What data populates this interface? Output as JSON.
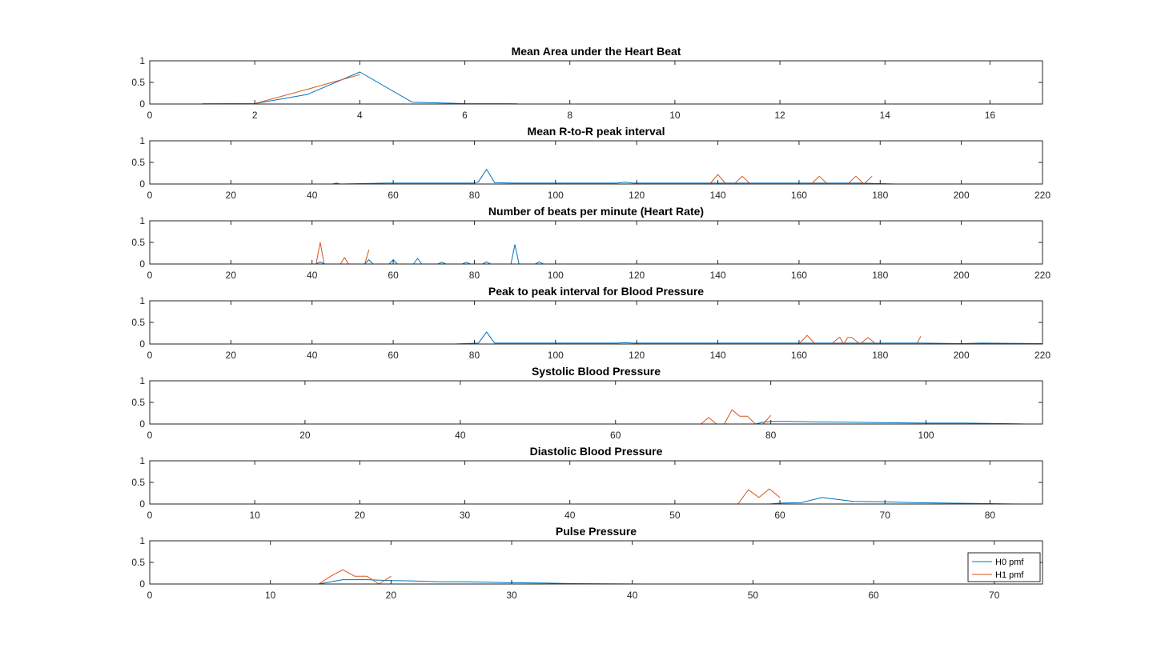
{
  "colors": {
    "h0": "#0072BD",
    "h1": "#D95319",
    "axis": "#262626",
    "background": "#ffffff"
  },
  "legend": {
    "placement": "bottom-right",
    "panel": 6,
    "entries": [
      "H0 pmf",
      "H1 pmf"
    ]
  },
  "chart_data": [
    {
      "type": "line",
      "title": "Mean Area under the Heart Beat",
      "xlim": [
        0,
        17
      ],
      "ylim": [
        0,
        1
      ],
      "xticks": [
        0,
        2,
        4,
        6,
        8,
        10,
        12,
        14,
        16
      ],
      "yticks": [
        0,
        0.5,
        1
      ],
      "grid": false,
      "series": [
        {
          "name": "H0 pmf",
          "x": [
            1,
            2,
            3,
            4,
            5,
            6,
            7
          ],
          "y": [
            0.005,
            0.01,
            0.22,
            0.74,
            0.04,
            0.01,
            0.005
          ]
        },
        {
          "name": "H1 pmf",
          "x": [
            1,
            2,
            3,
            4
          ],
          "y": [
            0.005,
            0.01,
            0.34,
            0.68
          ]
        }
      ]
    },
    {
      "type": "line",
      "title": "Mean R-to-R peak interval",
      "xlim": [
        0,
        220
      ],
      "ylim": [
        0,
        1
      ],
      "xticks": [
        0,
        20,
        40,
        60,
        80,
        100,
        120,
        140,
        160,
        180,
        200,
        220
      ],
      "yticks": [
        0,
        0.5,
        1
      ],
      "grid": false,
      "series": [
        {
          "name": "H0 pmf",
          "x": [
            0,
            45,
            46,
            47,
            58,
            66,
            80,
            81,
            83,
            85,
            90,
            115,
            117,
            119,
            140,
            160,
            175,
            180,
            184
          ],
          "y": [
            0,
            0,
            0.02,
            0,
            0.02,
            0.02,
            0.02,
            0.05,
            0.34,
            0.03,
            0.02,
            0.02,
            0.04,
            0.02,
            0.02,
            0.02,
            0.02,
            0.01,
            0
          ]
        },
        {
          "name": "H1 pmf",
          "x": [
            0,
            138,
            140,
            142,
            144,
            146,
            148,
            163,
            165,
            167,
            172,
            174,
            176,
            178
          ],
          "y": [
            0,
            0,
            0.22,
            0,
            0,
            0.18,
            0,
            0,
            0.18,
            0,
            0,
            0.18,
            0,
            0.18
          ]
        }
      ]
    },
    {
      "type": "line",
      "title": "Number of beats per minute (Heart Rate)",
      "xlim": [
        0,
        220
      ],
      "ylim": [
        0,
        1
      ],
      "xticks": [
        0,
        20,
        40,
        60,
        80,
        100,
        120,
        140,
        160,
        180,
        200,
        220
      ],
      "yticks": [
        0,
        0.5,
        1
      ],
      "grid": false,
      "series": [
        {
          "name": "H0 pmf",
          "x": [
            0,
            41,
            42,
            43,
            53,
            54,
            55,
            59,
            60,
            61,
            65,
            66,
            67,
            71,
            72,
            73,
            77,
            78,
            79,
            82,
            83,
            84,
            89,
            90,
            91,
            95,
            96,
            97,
            156
          ],
          "y": [
            0,
            0,
            0.05,
            0,
            0,
            0.1,
            0,
            0,
            0.1,
            0,
            0,
            0.13,
            0,
            0,
            0.04,
            0,
            0,
            0.04,
            0,
            0,
            0.05,
            0,
            0,
            0.45,
            0,
            0,
            0.05,
            0,
            0
          ]
        },
        {
          "name": "H1 pmf",
          "x": [
            0,
            41,
            42,
            43,
            47,
            48,
            49,
            53,
            54
          ],
          "y": [
            0,
            0,
            0.5,
            0,
            0,
            0.15,
            0,
            0,
            0.33
          ]
        }
      ]
    },
    {
      "type": "line",
      "title": "Peak to peak interval for Blood Pressure",
      "xlim": [
        0,
        220
      ],
      "ylim": [
        0,
        1
      ],
      "xticks": [
        0,
        20,
        40,
        60,
        80,
        100,
        120,
        140,
        160,
        180,
        200,
        220
      ],
      "yticks": [
        0,
        0.5,
        1
      ],
      "grid": false,
      "series": [
        {
          "name": "H0 pmf",
          "x": [
            0,
            75,
            81,
            83,
            85,
            115,
            117,
            119,
            160,
            190,
            200,
            205,
            220
          ],
          "y": [
            0,
            0,
            0.02,
            0.28,
            0.02,
            0.02,
            0.03,
            0.02,
            0.02,
            0.02,
            0.01,
            0.02,
            0.01
          ]
        },
        {
          "name": "H1 pmf",
          "x": [
            0,
            160,
            162,
            164,
            168,
            170,
            171,
            172,
            173,
            175,
            177,
            179,
            189,
            190
          ],
          "y": [
            0,
            0,
            0.2,
            0,
            0,
            0.16,
            0,
            0.15,
            0.15,
            0,
            0.15,
            0,
            0,
            0.18
          ]
        }
      ]
    },
    {
      "type": "line",
      "title": "Systolic Blood Pressure",
      "xlim": [
        0,
        115
      ],
      "ylim": [
        0,
        1
      ],
      "xticks": [
        0,
        20,
        40,
        60,
        80,
        100
      ],
      "yticks": [
        0,
        0.5,
        1
      ],
      "grid": false,
      "series": [
        {
          "name": "H0 pmf",
          "x": [
            1,
            78,
            79,
            80,
            82,
            85,
            90,
            95,
            100,
            105,
            110,
            113
          ],
          "y": [
            0,
            0,
            0.04,
            0.06,
            0.06,
            0.05,
            0.04,
            0.03,
            0.02,
            0.02,
            0.01,
            0
          ]
        },
        {
          "name": "H1 pmf",
          "x": [
            1,
            71,
            72,
            73,
            74,
            75,
            76,
            77,
            78,
            79,
            80
          ],
          "y": [
            0,
            0,
            0.15,
            0,
            0,
            0.33,
            0.18,
            0.18,
            0,
            0,
            0.2
          ]
        }
      ]
    },
    {
      "type": "line",
      "title": "Diastolic Blood Pressure",
      "xlim": [
        0,
        85
      ],
      "ylim": [
        0,
        1
      ],
      "xticks": [
        0,
        10,
        20,
        30,
        40,
        50,
        60,
        70,
        80
      ],
      "yticks": [
        0,
        0.5,
        1
      ],
      "grid": false,
      "series": [
        {
          "name": "H0 pmf",
          "x": [
            1,
            59,
            60,
            62,
            64,
            65,
            67,
            70,
            73,
            76,
            80,
            83
          ],
          "y": [
            0,
            0,
            0.02,
            0.03,
            0.15,
            0.12,
            0.06,
            0.05,
            0.03,
            0.02,
            0.01,
            0
          ]
        },
        {
          "name": "H1 pmf",
          "x": [
            1,
            56,
            57,
            58,
            59,
            60
          ],
          "y": [
            0,
            0,
            0.33,
            0.15,
            0.35,
            0.15
          ]
        }
      ]
    },
    {
      "type": "line",
      "title": "Pulse Pressure",
      "xlim": [
        0,
        74
      ],
      "ylim": [
        0,
        1
      ],
      "xticks": [
        0,
        10,
        20,
        30,
        40,
        50,
        60,
        70
      ],
      "yticks": [
        0,
        0.5,
        1
      ],
      "grid": false,
      "series": [
        {
          "name": "H0 pmf",
          "x": [
            1,
            14,
            15,
            16,
            17,
            18,
            20,
            22,
            24,
            26,
            28,
            30,
            33,
            35,
            41
          ],
          "y": [
            0,
            0,
            0.05,
            0.1,
            0.1,
            0.1,
            0.08,
            0.07,
            0.05,
            0.05,
            0.04,
            0.03,
            0.02,
            0.01,
            0
          ]
        },
        {
          "name": "H1 pmf",
          "x": [
            1,
            14,
            15,
            16,
            17,
            18,
            19,
            20
          ],
          "y": [
            0,
            0,
            0.18,
            0.33,
            0.18,
            0.18,
            0,
            0.18
          ]
        }
      ]
    }
  ]
}
